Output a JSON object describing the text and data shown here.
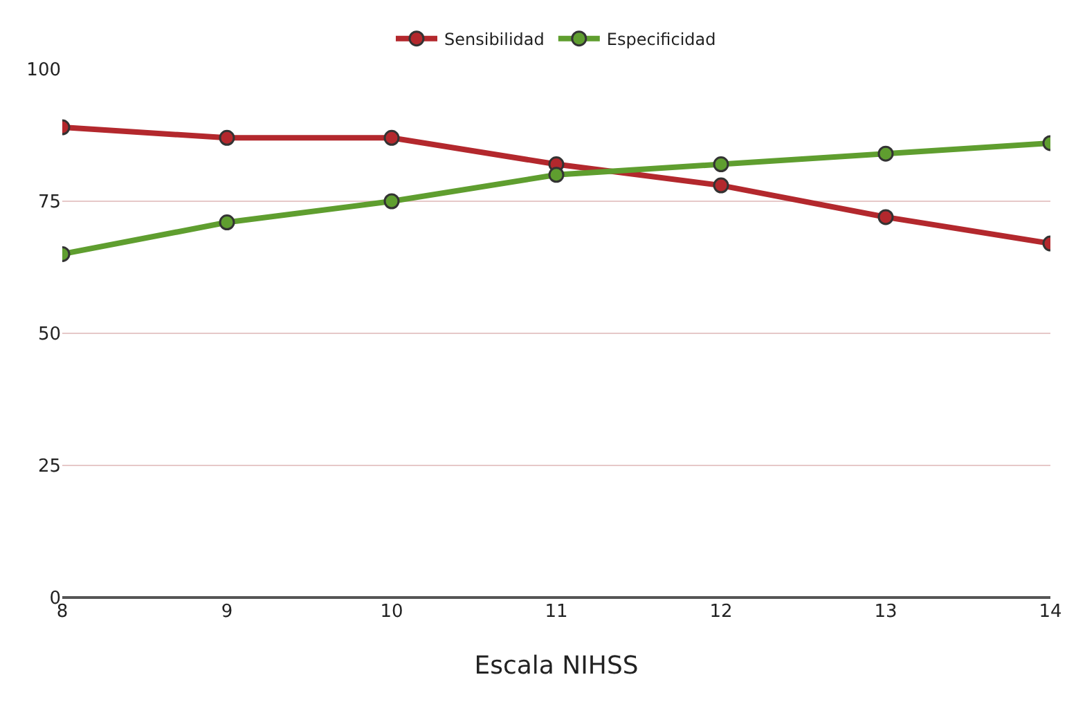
{
  "chart_data": {
    "type": "line",
    "xlabel": "Escala NIHSS",
    "x": [
      8,
      9,
      10,
      11,
      12,
      13,
      14
    ],
    "series": [
      {
        "name": "Sensibilidad",
        "color": "#b3282d",
        "values": [
          89,
          87,
          87,
          82,
          78,
          72,
          67
        ]
      },
      {
        "name": "Especificidad",
        "color": "#5f9e2f",
        "values": [
          65,
          71,
          75,
          80,
          82,
          84,
          86
        ]
      }
    ],
    "xlim": [
      8,
      14
    ],
    "xticks": [
      8,
      9,
      10,
      11,
      12,
      13,
      14
    ],
    "ylim": [
      0,
      100
    ],
    "yticks": [
      0,
      25,
      50,
      75,
      100
    ],
    "grid": "y",
    "legend": "top",
    "marker": "circle",
    "line_style": "solid"
  }
}
